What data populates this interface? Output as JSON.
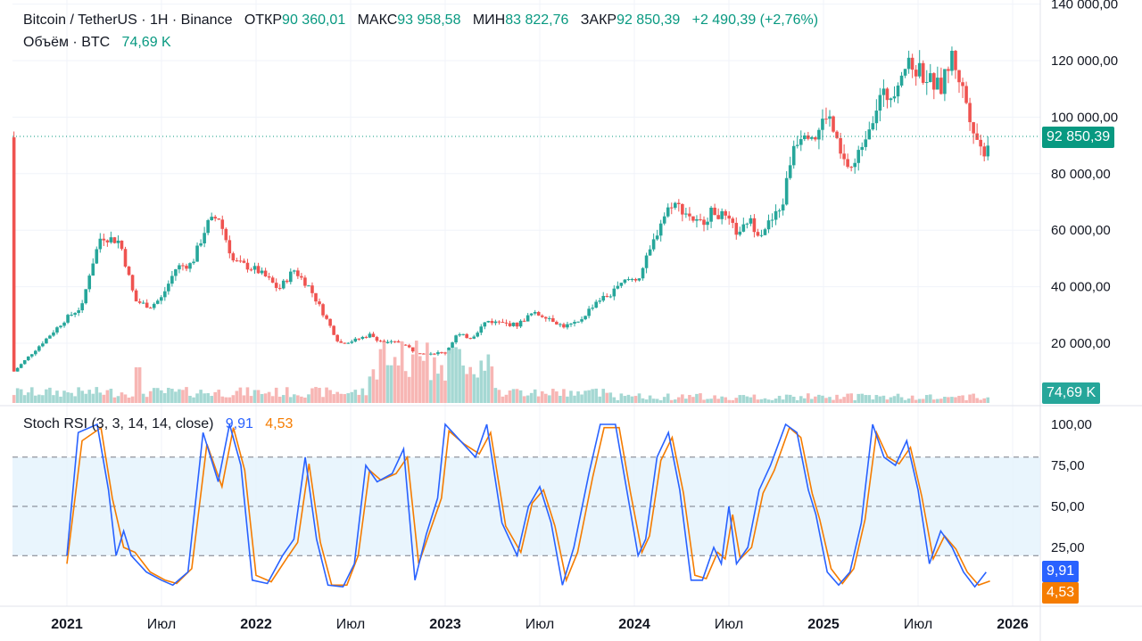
{
  "header": {
    "symbol": "Bitcoin / TetherUS · 1Н · Binance",
    "open_label": "ОТКР",
    "open_value": "90 360,01",
    "high_label": "МАКС",
    "high_value": "93 958,58",
    "low_label": "МИН",
    "low_value": "83 822,76",
    "close_label": "ЗАКР",
    "close_value": "92 850,39",
    "change": "+2 490,39 (+2,76%)",
    "volume_label": "Объём · BTC",
    "volume_value": "74,69 K"
  },
  "price_axis": {
    "ticks": [
      "140 000,00",
      "120 000,00",
      "100 000,00",
      "80 000,00",
      "60 000,00",
      "40 000,00",
      "20 000,00"
    ],
    "last_price_badge": "92 850,39",
    "volume_badge": "74,69 K"
  },
  "indicator": {
    "title": "Stoch RSI (3, 3, 14, 14, close)",
    "k_value": "9,91",
    "d_value": "4,53",
    "ticks": [
      "100,00",
      "75,00",
      "50,00",
      "25,00"
    ],
    "k_badge": "9,91",
    "d_badge": "4,53"
  },
  "time_axis": [
    "2021",
    "Июл",
    "2022",
    "Июл",
    "2023",
    "Июл",
    "2024",
    "Июл",
    "2025",
    "Июл",
    "2026"
  ],
  "colors": {
    "up": "#26a69a",
    "down": "#ef5350",
    "k_line": "#2962ff",
    "d_line": "#f57c00",
    "band": "#e3f2fd",
    "grid": "#f0f3fa",
    "last_price": "#089981"
  },
  "chart_data": {
    "type": "candlestick",
    "title": "Bitcoin / TetherUS",
    "ylim": [
      0,
      140000
    ],
    "price_series": [
      {
        "t": 0.0,
        "v": 29000
      },
      {
        "t": 0.08,
        "v": 33000
      },
      {
        "t": 0.12,
        "v": 45000
      },
      {
        "t": 0.18,
        "v": 58000
      },
      {
        "t": 0.28,
        "v": 56000
      },
      {
        "t": 0.36,
        "v": 35000
      },
      {
        "t": 0.44,
        "v": 33000
      },
      {
        "t": 0.5,
        "v": 36000
      },
      {
        "t": 0.58,
        "v": 47000
      },
      {
        "t": 0.66,
        "v": 48000
      },
      {
        "t": 0.74,
        "v": 62000
      },
      {
        "t": 0.8,
        "v": 65000
      },
      {
        "t": 0.88,
        "v": 49000
      },
      {
        "t": 1.0,
        "v": 46000
      },
      {
        "t": 1.06,
        "v": 43000
      },
      {
        "t": 1.12,
        "v": 39000
      },
      {
        "t": 1.2,
        "v": 46000
      },
      {
        "t": 1.28,
        "v": 40000
      },
      {
        "t": 1.36,
        "v": 30000
      },
      {
        "t": 1.44,
        "v": 20000
      },
      {
        "t": 1.52,
        "v": 21000
      },
      {
        "t": 1.6,
        "v": 23000
      },
      {
        "t": 1.68,
        "v": 20000
      },
      {
        "t": 1.76,
        "v": 20500
      },
      {
        "t": 1.84,
        "v": 17000
      },
      {
        "t": 1.92,
        "v": 16500
      },
      {
        "t": 2.0,
        "v": 16600
      },
      {
        "t": 2.06,
        "v": 23000
      },
      {
        "t": 2.14,
        "v": 22000
      },
      {
        "t": 2.22,
        "v": 28000
      },
      {
        "t": 2.3,
        "v": 27000
      },
      {
        "t": 2.38,
        "v": 26500
      },
      {
        "t": 2.46,
        "v": 30500
      },
      {
        "t": 2.54,
        "v": 29500
      },
      {
        "t": 2.62,
        "v": 26000
      },
      {
        "t": 2.7,
        "v": 27000
      },
      {
        "t": 2.8,
        "v": 35000
      },
      {
        "t": 2.88,
        "v": 37500
      },
      {
        "t": 2.96,
        "v": 42500
      },
      {
        "t": 3.02,
        "v": 43000
      },
      {
        "t": 3.08,
        "v": 52000
      },
      {
        "t": 3.14,
        "v": 63000
      },
      {
        "t": 3.2,
        "v": 70000
      },
      {
        "t": 3.28,
        "v": 66000
      },
      {
        "t": 3.34,
        "v": 62000
      },
      {
        "t": 3.42,
        "v": 67000
      },
      {
        "t": 3.48,
        "v": 64000
      },
      {
        "t": 3.56,
        "v": 58000
      },
      {
        "t": 3.6,
        "v": 64000
      },
      {
        "t": 3.66,
        "v": 59000
      },
      {
        "t": 3.72,
        "v": 63000
      },
      {
        "t": 3.78,
        "v": 68000
      },
      {
        "t": 3.84,
        "v": 90000
      },
      {
        "t": 3.9,
        "v": 96000
      },
      {
        "t": 3.96,
        "v": 93000
      },
      {
        "t": 4.02,
        "v": 102000
      },
      {
        "t": 4.1,
        "v": 84000
      },
      {
        "t": 4.16,
        "v": 82000
      },
      {
        "t": 4.22,
        "v": 94000
      },
      {
        "t": 4.3,
        "v": 107000
      },
      {
        "t": 4.36,
        "v": 108000
      },
      {
        "t": 4.42,
        "v": 118000
      },
      {
        "t": 4.5,
        "v": 117000
      },
      {
        "t": 4.56,
        "v": 113000
      },
      {
        "t": 4.62,
        "v": 110000
      },
      {
        "t": 4.68,
        "v": 122000
      },
      {
        "t": 4.74,
        "v": 109000
      },
      {
        "t": 4.8,
        "v": 95000
      },
      {
        "t": 4.84,
        "v": 87000
      },
      {
        "t": 4.88,
        "v": 92850
      }
    ],
    "volume_last": "74,69 K",
    "stoch_rsi": {
      "k_last": 9.91,
      "d_last": 4.53,
      "levels": [
        80,
        50,
        20
      ],
      "k_series": [
        {
          "t": 0.0,
          "v": 20
        },
        {
          "t": 0.06,
          "v": 95
        },
        {
          "t": 0.16,
          "v": 100
        },
        {
          "t": 0.22,
          "v": 60
        },
        {
          "t": 0.26,
          "v": 20
        },
        {
          "t": 0.3,
          "v": 35
        },
        {
          "t": 0.34,
          "v": 20
        },
        {
          "t": 0.42,
          "v": 10
        },
        {
          "t": 0.5,
          "v": 5
        },
        {
          "t": 0.56,
          "v": 2
        },
        {
          "t": 0.64,
          "v": 10
        },
        {
          "t": 0.72,
          "v": 95
        },
        {
          "t": 0.8,
          "v": 65
        },
        {
          "t": 0.86,
          "v": 100
        },
        {
          "t": 0.92,
          "v": 75
        },
        {
          "t": 0.98,
          "v": 5
        },
        {
          "t": 1.06,
          "v": 3
        },
        {
          "t": 1.14,
          "v": 20
        },
        {
          "t": 1.2,
          "v": 30
        },
        {
          "t": 1.26,
          "v": 80
        },
        {
          "t": 1.32,
          "v": 30
        },
        {
          "t": 1.38,
          "v": 2
        },
        {
          "t": 1.46,
          "v": 1
        },
        {
          "t": 1.52,
          "v": 15
        },
        {
          "t": 1.58,
          "v": 75
        },
        {
          "t": 1.64,
          "v": 65
        },
        {
          "t": 1.72,
          "v": 70
        },
        {
          "t": 1.78,
          "v": 85
        },
        {
          "t": 1.84,
          "v": 5
        },
        {
          "t": 1.9,
          "v": 33
        },
        {
          "t": 1.96,
          "v": 55
        },
        {
          "t": 2.0,
          "v": 100
        },
        {
          "t": 2.08,
          "v": 90
        },
        {
          "t": 2.16,
          "v": 80
        },
        {
          "t": 2.22,
          "v": 100
        },
        {
          "t": 2.3,
          "v": 40
        },
        {
          "t": 2.38,
          "v": 20
        },
        {
          "t": 2.44,
          "v": 50
        },
        {
          "t": 2.5,
          "v": 62
        },
        {
          "t": 2.56,
          "v": 40
        },
        {
          "t": 2.62,
          "v": 2
        },
        {
          "t": 2.68,
          "v": 25
        },
        {
          "t": 2.76,
          "v": 70
        },
        {
          "t": 2.82,
          "v": 100
        },
        {
          "t": 2.9,
          "v": 100
        },
        {
          "t": 2.96,
          "v": 60
        },
        {
          "t": 3.02,
          "v": 20
        },
        {
          "t": 3.06,
          "v": 30
        },
        {
          "t": 3.12,
          "v": 80
        },
        {
          "t": 3.18,
          "v": 95
        },
        {
          "t": 3.24,
          "v": 60
        },
        {
          "t": 3.3,
          "v": 5
        },
        {
          "t": 3.36,
          "v": 5
        },
        {
          "t": 3.42,
          "v": 25
        },
        {
          "t": 3.46,
          "v": 15
        },
        {
          "t": 3.5,
          "v": 50
        },
        {
          "t": 3.54,
          "v": 15
        },
        {
          "t": 3.6,
          "v": 25
        },
        {
          "t": 3.66,
          "v": 60
        },
        {
          "t": 3.72,
          "v": 75
        },
        {
          "t": 3.8,
          "v": 100
        },
        {
          "t": 3.86,
          "v": 95
        },
        {
          "t": 3.92,
          "v": 60
        },
        {
          "t": 3.96,
          "v": 45
        },
        {
          "t": 4.02,
          "v": 10
        },
        {
          "t": 4.08,
          "v": 2
        },
        {
          "t": 4.14,
          "v": 10
        },
        {
          "t": 4.2,
          "v": 40
        },
        {
          "t": 4.26,
          "v": 100
        },
        {
          "t": 4.32,
          "v": 80
        },
        {
          "t": 4.38,
          "v": 75
        },
        {
          "t": 4.44,
          "v": 90
        },
        {
          "t": 4.5,
          "v": 60
        },
        {
          "t": 4.56,
          "v": 15
        },
        {
          "t": 4.62,
          "v": 35
        },
        {
          "t": 4.68,
          "v": 25
        },
        {
          "t": 4.74,
          "v": 10
        },
        {
          "t": 4.8,
          "v": 1
        },
        {
          "t": 4.86,
          "v": 9.91
        }
      ],
      "d_series": [
        {
          "t": 0.0,
          "v": 15
        },
        {
          "t": 0.08,
          "v": 90
        },
        {
          "t": 0.18,
          "v": 98
        },
        {
          "t": 0.24,
          "v": 55
        },
        {
          "t": 0.3,
          "v": 25
        },
        {
          "t": 0.36,
          "v": 22
        },
        {
          "t": 0.44,
          "v": 10
        },
        {
          "t": 0.52,
          "v": 5
        },
        {
          "t": 0.58,
          "v": 3
        },
        {
          "t": 0.66,
          "v": 12
        },
        {
          "t": 0.74,
          "v": 88
        },
        {
          "t": 0.82,
          "v": 62
        },
        {
          "t": 0.88,
          "v": 98
        },
        {
          "t": 0.94,
          "v": 72
        },
        {
          "t": 1.0,
          "v": 8
        },
        {
          "t": 1.08,
          "v": 4
        },
        {
          "t": 1.16,
          "v": 18
        },
        {
          "t": 1.22,
          "v": 28
        },
        {
          "t": 1.28,
          "v": 76
        },
        {
          "t": 1.34,
          "v": 28
        },
        {
          "t": 1.4,
          "v": 2
        },
        {
          "t": 1.48,
          "v": 2
        },
        {
          "t": 1.54,
          "v": 20
        },
        {
          "t": 1.6,
          "v": 72
        },
        {
          "t": 1.66,
          "v": 66
        },
        {
          "t": 1.74,
          "v": 70
        },
        {
          "t": 1.8,
          "v": 80
        },
        {
          "t": 1.86,
          "v": 15
        },
        {
          "t": 1.92,
          "v": 35
        },
        {
          "t": 1.98,
          "v": 55
        },
        {
          "t": 2.02,
          "v": 96
        },
        {
          "t": 2.1,
          "v": 88
        },
        {
          "t": 2.18,
          "v": 82
        },
        {
          "t": 2.24,
          "v": 95
        },
        {
          "t": 2.32,
          "v": 38
        },
        {
          "t": 2.4,
          "v": 22
        },
        {
          "t": 2.46,
          "v": 52
        },
        {
          "t": 2.52,
          "v": 60
        },
        {
          "t": 2.58,
          "v": 38
        },
        {
          "t": 2.64,
          "v": 5
        },
        {
          "t": 2.7,
          "v": 22
        },
        {
          "t": 2.78,
          "v": 68
        },
        {
          "t": 2.84,
          "v": 98
        },
        {
          "t": 2.92,
          "v": 98
        },
        {
          "t": 2.98,
          "v": 58
        },
        {
          "t": 3.04,
          "v": 22
        },
        {
          "t": 3.08,
          "v": 32
        },
        {
          "t": 3.14,
          "v": 78
        },
        {
          "t": 3.2,
          "v": 92
        },
        {
          "t": 3.26,
          "v": 58
        },
        {
          "t": 3.32,
          "v": 8
        },
        {
          "t": 3.38,
          "v": 6
        },
        {
          "t": 3.44,
          "v": 22
        },
        {
          "t": 3.48,
          "v": 18
        },
        {
          "t": 3.52,
          "v": 45
        },
        {
          "t": 3.56,
          "v": 18
        },
        {
          "t": 3.62,
          "v": 25
        },
        {
          "t": 3.68,
          "v": 58
        },
        {
          "t": 3.74,
          "v": 72
        },
        {
          "t": 3.82,
          "v": 98
        },
        {
          "t": 3.88,
          "v": 92
        },
        {
          "t": 3.94,
          "v": 58
        },
        {
          "t": 3.98,
          "v": 42
        },
        {
          "t": 4.04,
          "v": 12
        },
        {
          "t": 4.1,
          "v": 3
        },
        {
          "t": 4.16,
          "v": 12
        },
        {
          "t": 4.22,
          "v": 42
        },
        {
          "t": 4.28,
          "v": 95
        },
        {
          "t": 4.34,
          "v": 80
        },
        {
          "t": 4.4,
          "v": 76
        },
        {
          "t": 4.46,
          "v": 86
        },
        {
          "t": 4.52,
          "v": 56
        },
        {
          "t": 4.58,
          "v": 18
        },
        {
          "t": 4.64,
          "v": 32
        },
        {
          "t": 4.7,
          "v": 24
        },
        {
          "t": 4.76,
          "v": 10
        },
        {
          "t": 4.82,
          "v": 2
        },
        {
          "t": 4.88,
          "v": 4.53
        }
      ]
    }
  }
}
